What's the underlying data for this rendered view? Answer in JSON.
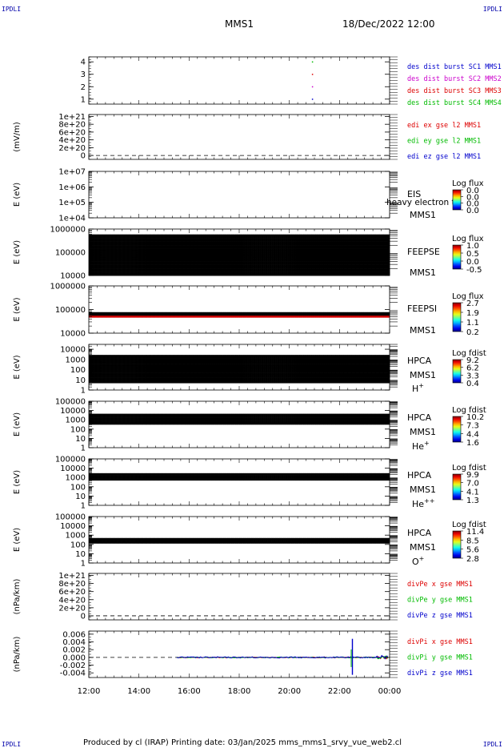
{
  "header": {
    "corner_tl": "IPDLI",
    "corner_tr": "IPDLI",
    "corner_bl": "IPDLI",
    "corner_br": "IPDLI",
    "title": "MMS1",
    "datetime": "18/Dec/2022 12:00"
  },
  "footer": {
    "credit": "Produced by cl (IRAP)   Printing date: 03/Jan/2025   mms_mms1_srvy_vue_web2.cl"
  },
  "chart_data": [
    {
      "type": "scatter",
      "ylabel": "",
      "yticks": [
        "4",
        "3",
        "2",
        "1"
      ],
      "ylim": [
        0.6,
        4.4
      ],
      "legend_lines": [
        {
          "text": "des dist burst SC1 MMS1",
          "color": "#0000cc"
        },
        {
          "text": "des dist burst SC2 MMS2",
          "color": "#cc00cc"
        },
        {
          "text": "des dist burst SC3 MMS3",
          "color": "#dd0000"
        },
        {
          "text": "des dist burst SC4 MMS4",
          "color": "#00bb00"
        }
      ],
      "points": [
        {
          "x": "20:54",
          "y": 4,
          "color": "#00bb00"
        },
        {
          "x": "20:54",
          "y": 3,
          "color": "#dd0000"
        },
        {
          "x": "20:54",
          "y": 2,
          "color": "#cc00cc"
        },
        {
          "x": "20:54",
          "y": 1,
          "color": "#0000cc"
        }
      ]
    },
    {
      "type": "line",
      "ylabel": "(mV/m)",
      "yticks": [
        "1e+21",
        "8e+20",
        "6e+20",
        "4e+20",
        "2e+20",
        "0"
      ],
      "ylim": [
        -1e+20,
        1.05e+21
      ],
      "zero_line": true,
      "legend_lines": [
        {
          "text": "edi ex gse l2 MMS1",
          "color": "#dd0000"
        },
        {
          "text": "edi ey gse l2 MMS1",
          "color": "#00bb00"
        },
        {
          "text": "edi ez gse l2 MMS1",
          "color": "#0000cc"
        }
      ]
    },
    {
      "type": "heatmap",
      "ylabel": "E (eV)",
      "yscale": "log",
      "yticks": [
        "1e+07",
        "1e+06",
        "1e+05",
        "1e+04"
      ],
      "ylim": [
        10000,
        10000000
      ],
      "instrument_lines": [
        "EIS",
        "",
        "MMS1"
      ],
      "overlay_text": "heavy electron to",
      "colorbar": {
        "title": "Log flux",
        "labels": [
          "0.0",
          "0.0",
          "0.0",
          "0.0"
        ]
      },
      "data_present": false
    },
    {
      "type": "heatmap",
      "ylabel": "E (eV)",
      "yscale": "log",
      "yticks": [
        "1000000",
        "100000",
        "10000"
      ],
      "ylim": [
        10000,
        1000000
      ],
      "instrument_lines": [
        "FEEPSE",
        "",
        "MMS1"
      ],
      "colorbar": {
        "title": "Log flux",
        "labels": [
          "1.0",
          "0.5",
          "0.0",
          "-0.5"
        ]
      },
      "data_present": true
    },
    {
      "type": "heatmap",
      "ylabel": "E (eV)",
      "yscale": "log",
      "yticks": [
        "1000000",
        "100000",
        "10000"
      ],
      "ylim": [
        10000,
        1000000
      ],
      "instrument_lines": [
        "FEEPSI",
        "",
        "MMS1"
      ],
      "colorbar": {
        "title": "Log flux",
        "labels": [
          "2.7",
          "1.9",
          "1.1",
          "0.2"
        ]
      },
      "data_present": true
    },
    {
      "type": "heatmap",
      "ylabel": "E (eV)",
      "yscale": "log",
      "yticks": [
        "10000",
        "1000",
        "100",
        "10",
        "1"
      ],
      "ylim": [
        1,
        30000
      ],
      "instrument_lines": [
        "HPCA",
        "MMS1",
        "H+"
      ],
      "colorbar": {
        "title": "Log fdist",
        "labels": [
          "9.2",
          "6.2",
          "3.3",
          "0.4"
        ]
      },
      "data_present": true
    },
    {
      "type": "heatmap",
      "ylabel": "E (eV)",
      "yscale": "log",
      "yticks": [
        "100000",
        "10000",
        "1000",
        "100",
        "10",
        "1"
      ],
      "ylim": [
        1,
        100000
      ],
      "instrument_lines": [
        "HPCA",
        "MMS1",
        "He+"
      ],
      "colorbar": {
        "title": "Log fdist",
        "labels": [
          "10.2",
          "7.3",
          "4.4",
          "1.6"
        ]
      },
      "data_present": true
    },
    {
      "type": "heatmap",
      "ylabel": "E (eV)",
      "yscale": "log",
      "yticks": [
        "100000",
        "10000",
        "1000",
        "100",
        "10",
        "1"
      ],
      "ylim": [
        1,
        100000
      ],
      "instrument_lines": [
        "HPCA",
        "MMS1",
        "He++"
      ],
      "colorbar": {
        "title": "Log fdist",
        "labels": [
          "9.9",
          "7.0",
          "4.1",
          "1.3"
        ]
      },
      "data_present": true
    },
    {
      "type": "heatmap",
      "ylabel": "E (eV)",
      "yscale": "log",
      "yticks": [
        "100000",
        "10000",
        "1000",
        "100",
        "10",
        "1"
      ],
      "ylim": [
        1,
        100000
      ],
      "instrument_lines": [
        "HPCA",
        "MMS1",
        "O+"
      ],
      "colorbar": {
        "title": "Log fdist",
        "labels": [
          "11.4",
          "8.5",
          "5.6",
          "2.8"
        ]
      },
      "data_present": true
    },
    {
      "type": "line",
      "ylabel": "(nPa/km)",
      "yticks": [
        "1e+21",
        "8e+20",
        "6e+20",
        "4e+20",
        "2e+20",
        "0"
      ],
      "ylim": [
        -1e+20,
        1.05e+21
      ],
      "zero_line": true,
      "legend_lines": [
        {
          "text": "divPe x gse MMS1",
          "color": "#dd0000"
        },
        {
          "text": "divPe y gse MMS1",
          "color": "#00bb00"
        },
        {
          "text": "divPe z gse MMS1",
          "color": "#0000cc"
        }
      ]
    },
    {
      "type": "line",
      "ylabel": "(nPa/km)",
      "yticks": [
        "0.006",
        "0.004",
        "0.002",
        "0.000",
        "-0.002",
        "-0.004"
      ],
      "ylim": [
        -0.0052,
        0.0068
      ],
      "zero_line": true,
      "legend_lines": [
        {
          "text": "divPi x gse MMS1",
          "color": "#dd0000"
        },
        {
          "text": "divPi y gse MMS1",
          "color": "#00bb00"
        },
        {
          "text": "divPi z gse MMS1",
          "color": "#0000cc"
        }
      ],
      "data_range": [
        "15:30",
        "00:00"
      ],
      "spike": {
        "x": "22:30",
        "max": 0.0048,
        "min": -0.0045
      }
    }
  ],
  "xaxis": {
    "ticks": [
      "12:00",
      "14:00",
      "16:00",
      "18:00",
      "20:00",
      "22:00",
      "00:00"
    ],
    "range": [
      "12:00",
      "00:00"
    ]
  }
}
